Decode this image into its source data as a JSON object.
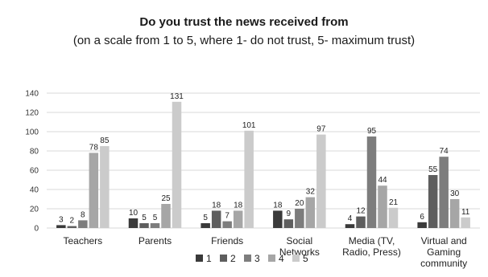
{
  "chart_data": {
    "type": "bar",
    "title": "Do you trust the news received from",
    "subtitle": "(on a scale from 1 to 5, where 1- do not trust, 5- maximum trust)",
    "xlabel": "",
    "ylabel": "",
    "ylim": [
      0,
      140
    ],
    "yticks": [
      0,
      20,
      40,
      60,
      80,
      100,
      120,
      140
    ],
    "grid": true,
    "legend_position": "bottom",
    "categories": [
      [
        "Teachers"
      ],
      [
        "Parents"
      ],
      [
        "Friends"
      ],
      [
        "Social",
        "Networks"
      ],
      [
        "Media (TV,",
        "Radio, Press)"
      ],
      [
        "Virtual and",
        "Gaming",
        "community"
      ]
    ],
    "series": [
      {
        "name": "1",
        "color": "#3a3a3a",
        "values": [
          3,
          10,
          5,
          18,
          4,
          6
        ]
      },
      {
        "name": "2",
        "color": "#5e5e5e",
        "values": [
          2,
          5,
          18,
          9,
          12,
          55
        ]
      },
      {
        "name": "3",
        "color": "#7d7d7d",
        "values": [
          8,
          5,
          7,
          20,
          95,
          74
        ]
      },
      {
        "name": "4",
        "color": "#a6a6a6",
        "values": [
          78,
          25,
          18,
          32,
          44,
          30
        ]
      },
      {
        "name": "5",
        "color": "#cbcbcb",
        "values": [
          85,
          131,
          101,
          97,
          21,
          11
        ]
      }
    ]
  }
}
